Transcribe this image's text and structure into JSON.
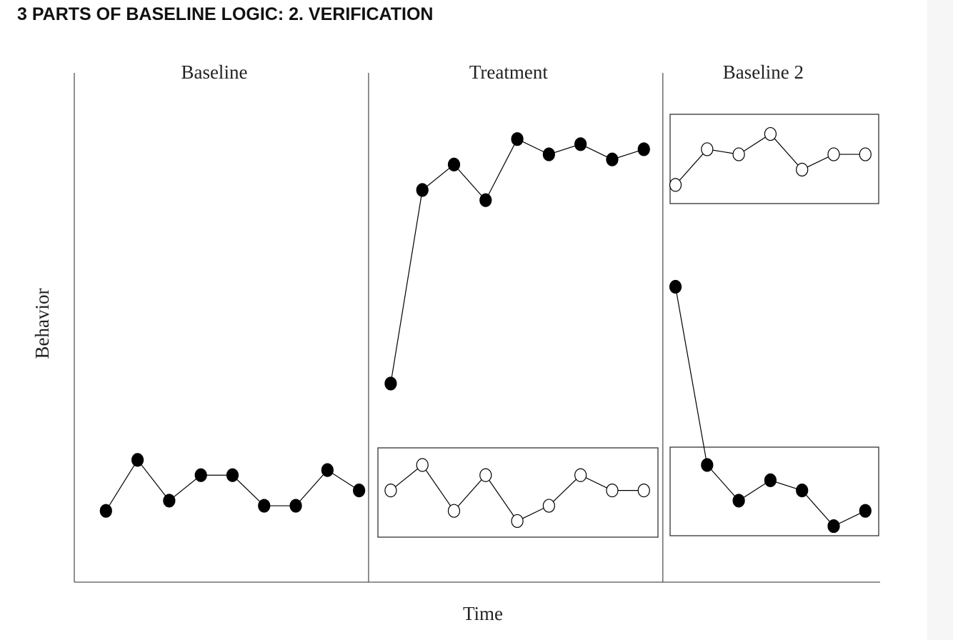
{
  "title": "3 PARTS OF BASELINE LOGIC: 2. VERIFICATION",
  "chart_data": {
    "type": "line",
    "xlabel": "Time",
    "ylabel": "Behavior",
    "xlim": [
      0,
      25.4
    ],
    "ylim": [
      0,
      100
    ],
    "phases": [
      {
        "label": "Baseline",
        "start": 0,
        "end": 9.3
      },
      {
        "label": "Treatment",
        "start": 9.3,
        "end": 18.6
      },
      {
        "label": "Baseline 2",
        "start": 18.6,
        "end": 25.4
      }
    ],
    "series": [
      {
        "color": "#000000",
        "marker": "filled",
        "x": [
          1,
          2,
          3,
          4,
          5,
          6,
          7,
          8,
          9
        ],
        "values": [
          14,
          24,
          16,
          21,
          21,
          15,
          15,
          22,
          18
        ]
      },
      {
        "color": "#000000",
        "marker": "filled",
        "x": [
          10,
          11,
          12,
          13,
          14,
          15,
          16,
          17,
          18
        ],
        "values": [
          39,
          77,
          82,
          75,
          87,
          84,
          86,
          83,
          85
        ]
      },
      {
        "color": "#000000",
        "marker": "open",
        "x": [
          10,
          11,
          12,
          13,
          14,
          15,
          16,
          17,
          18
        ],
        "values": [
          18,
          23,
          14,
          21,
          12,
          15,
          21,
          18,
          18
        ]
      },
      {
        "color": "#000000",
        "marker": "open",
        "x": [
          19,
          20,
          21,
          22,
          23,
          24,
          25
        ],
        "values": [
          78,
          85,
          84,
          88,
          81,
          84,
          84
        ]
      },
      {
        "color": "#000000",
        "marker": "filled",
        "x": [
          19,
          20,
          21,
          22,
          23,
          24,
          25
        ],
        "values": [
          58,
          23,
          16,
          20,
          18,
          11,
          14
        ]
      }
    ]
  }
}
